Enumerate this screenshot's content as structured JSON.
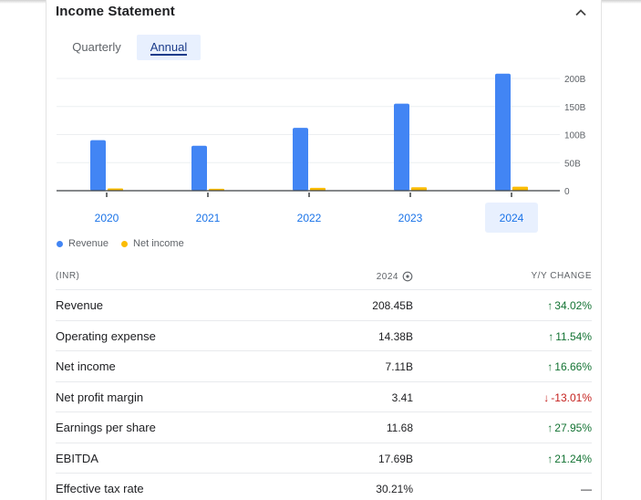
{
  "header": {
    "title": "Income Statement",
    "collapse_icon": "chevron-up-icon"
  },
  "tabs": [
    {
      "label": "Quarterly",
      "selected": false
    },
    {
      "label": "Annual",
      "selected": true
    }
  ],
  "colors": {
    "revenue": "#4285f4",
    "net_income": "#fbbc04",
    "selected_tab_bg": "#e8f0fe",
    "positive": "#137333",
    "negative": "#c5221f"
  },
  "chart_data": {
    "type": "bar",
    "categories": [
      "2020",
      "2021",
      "2022",
      "2023",
      "2024"
    ],
    "selected_category": "2024",
    "series": [
      {
        "name": "Revenue",
        "values": [
          90,
          80,
          112,
          155,
          208.45
        ]
      },
      {
        "name": "Net income",
        "values": [
          4,
          3.5,
          5,
          6,
          7.11
        ]
      }
    ],
    "yticks": [
      "0",
      "50B",
      "100B",
      "150B",
      "200B"
    ],
    "ylim": [
      0,
      200
    ],
    "legend_position": "bottom-left",
    "grid": true
  },
  "legend": [
    {
      "label": "Revenue"
    },
    {
      "label": "Net income"
    }
  ],
  "table": {
    "headers": {
      "label": "(INR)",
      "value": "2024",
      "change": "Y/Y CHANGE"
    },
    "rows": [
      {
        "label": "Revenue",
        "value": "208.45B",
        "change": "34.02%",
        "direction": "up"
      },
      {
        "label": "Operating expense",
        "value": "14.38B",
        "change": "11.54%",
        "direction": "up"
      },
      {
        "label": "Net income",
        "value": "7.11B",
        "change": "16.66%",
        "direction": "up"
      },
      {
        "label": "Net profit margin",
        "value": "3.41",
        "change": "-13.01%",
        "direction": "down"
      },
      {
        "label": "Earnings per share",
        "value": "11.68",
        "change": "27.95%",
        "direction": "up"
      },
      {
        "label": "EBITDA",
        "value": "17.69B",
        "change": "21.24%",
        "direction": "up"
      },
      {
        "label": "Effective tax rate",
        "value": "30.21%",
        "change": "—",
        "direction": "none"
      }
    ]
  }
}
